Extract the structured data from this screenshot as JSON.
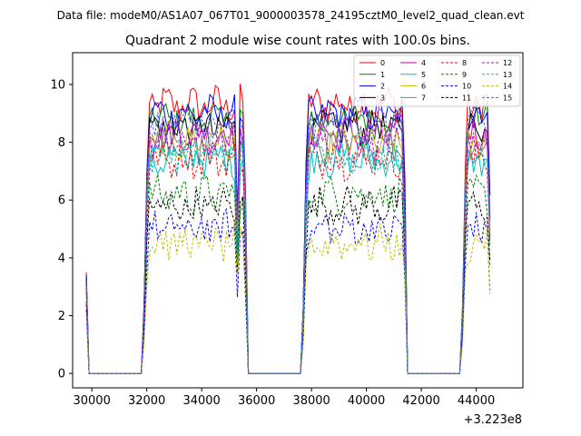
{
  "figure": {
    "suptitle": "Data file: modeM0/AS1A07_067T01_9000003578_24195cztM0_level2_quad_clean.evt"
  },
  "chart_data": {
    "type": "line",
    "title": "Quadrant 2 module wise count rates with 100.0s bins.",
    "xlabel": "",
    "ylabel": "",
    "x_offset_label": "+3.223e8",
    "xlim": [
      29300,
      45700
    ],
    "ylim": [
      -0.5,
      11.1
    ],
    "xticks": [
      30000,
      32000,
      34000,
      36000,
      38000,
      40000,
      42000,
      44000
    ],
    "xtick_labels": [
      "30000",
      "32000",
      "34000",
      "36000",
      "38000",
      "40000",
      "42000",
      "44000"
    ],
    "yticks": [
      0,
      2,
      4,
      6,
      8,
      10
    ],
    "ytick_labels": [
      "0",
      "2",
      "4",
      "6",
      "8",
      "10"
    ],
    "bin_seconds": 100,
    "x_start": 29800,
    "x_end": 44500,
    "segments": [
      {
        "label": "pre",
        "from": 29800,
        "to": 29900
      },
      {
        "label": "gap",
        "from": 30000,
        "to": 31800
      },
      {
        "label": "on",
        "from": 31900,
        "to": 35600
      },
      {
        "label": "gap",
        "from": 35700,
        "to": 37600
      },
      {
        "label": "on",
        "from": 37700,
        "to": 41400
      },
      {
        "label": "gap",
        "from": 41500,
        "to": 43400
      },
      {
        "label": "on",
        "from": 43500,
        "to": 44500
      }
    ],
    "legend_position": "top-right",
    "legend_columns": 4,
    "series": [
      {
        "name": "0",
        "color": "#ff0000",
        "style": "solid",
        "mean": 9.3,
        "start": 3.5
      },
      {
        "name": "1",
        "color": "#008000",
        "style": "solid",
        "mean": 8.8,
        "start": 3.3
      },
      {
        "name": "2",
        "color": "#0000ff",
        "style": "solid",
        "mean": 9.0,
        "start": 3.4
      },
      {
        "name": "3",
        "color": "#000000",
        "style": "solid",
        "mean": 8.5,
        "start": 3.2
      },
      {
        "name": "4",
        "color": "#bf00bf",
        "style": "solid",
        "mean": 8.3,
        "start": 3.1
      },
      {
        "name": "5",
        "color": "#00bfbf",
        "style": "solid",
        "mean": 7.4,
        "start": 2.9
      },
      {
        "name": "6",
        "color": "#bfbf00",
        "style": "solid",
        "mean": 8.0,
        "start": 3.0
      },
      {
        "name": "7",
        "color": "#808080",
        "style": "solid",
        "mean": 7.9,
        "start": 3.0
      },
      {
        "name": "8",
        "color": "#ff0000",
        "style": "dashed",
        "mean": 7.4,
        "start": 2.8
      },
      {
        "name": "9",
        "color": "#008000",
        "style": "dashed",
        "mean": 6.2,
        "start": 2.5
      },
      {
        "name": "10",
        "color": "#0000ff",
        "style": "dashed",
        "mean": 5.0,
        "start": 2.2
      },
      {
        "name": "11",
        "color": "#000000",
        "style": "dashed",
        "mean": 5.8,
        "start": 2.4
      },
      {
        "name": "12",
        "color": "#bf00bf",
        "style": "dashed",
        "mean": 8.0,
        "start": 3.0
      },
      {
        "name": "13",
        "color": "#00bfbf",
        "style": "dashed",
        "mean": 7.6,
        "start": 2.9
      },
      {
        "name": "14",
        "color": "#bfbf00",
        "style": "dashed",
        "mean": 4.5,
        "start": 2.0
      },
      {
        "name": "15",
        "color": "#5050ff",
        "style": "dashed",
        "mean": 8.6,
        "start": 3.2
      }
    ]
  }
}
